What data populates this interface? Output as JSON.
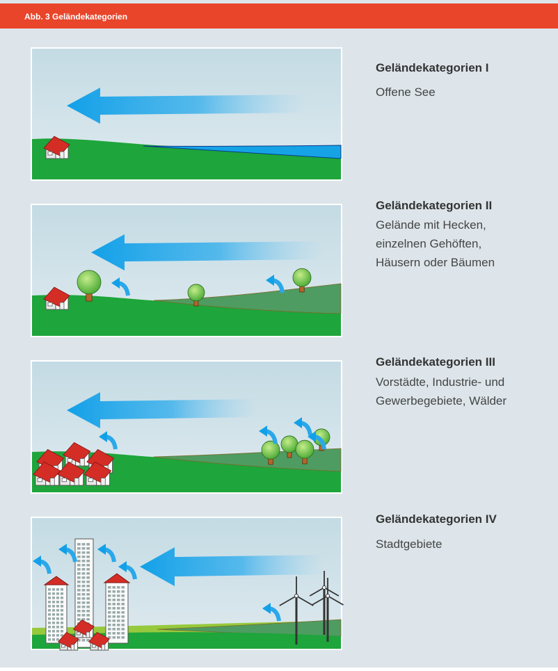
{
  "header": {
    "title": "Abb. 3 Geländekategorien"
  },
  "panels": [
    {
      "title": "Geländekategorien I",
      "lines": [
        "Offene See"
      ]
    },
    {
      "title": "Geländekategorien II",
      "lines": [
        "Gelände mit Hecken,",
        "einzelnen Gehöften,",
        "Häusern oder Bäumen"
      ]
    },
    {
      "title": "Geländekategorien III",
      "lines": [
        "Vorstädte, Industrie- und",
        "Gewerbegebiete, Wälder"
      ]
    },
    {
      "title": "Geländekategorien IV",
      "lines": [
        "Stadtgebiete"
      ]
    }
  ]
}
